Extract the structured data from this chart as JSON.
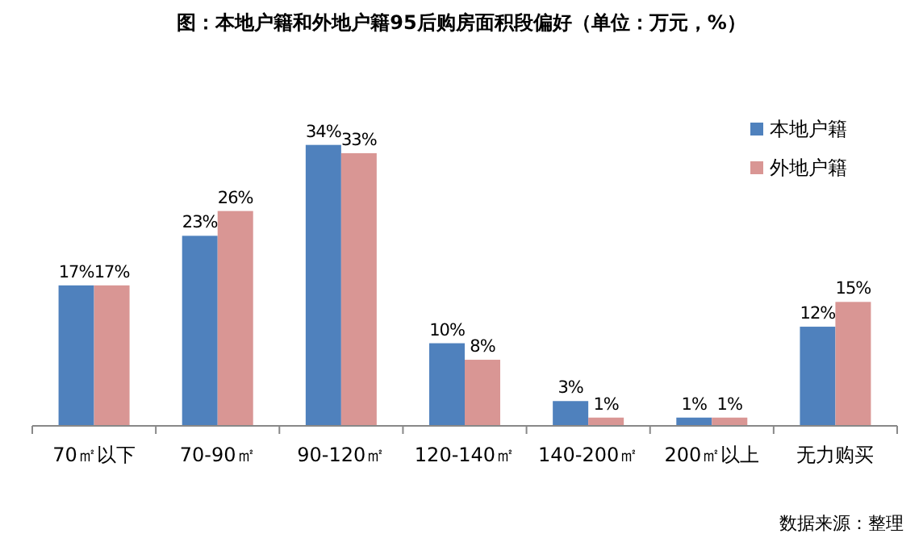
{
  "chart_data": {
    "type": "bar",
    "title": "图：本地户籍和外地户籍95后购房面积段偏好（单位：万元，%）",
    "categories": [
      "70㎡以下",
      "70-90㎡",
      "90-120㎡",
      "120-140㎡",
      "140-200㎡",
      "200㎡以上",
      "无力购买"
    ],
    "series": [
      {
        "name": "本地户籍",
        "color": "#4f81bd",
        "values": [
          17,
          23,
          34,
          10,
          3,
          1,
          12
        ],
        "value_labels": [
          "17%",
          "23%",
          "34%",
          "10%",
          "3%",
          "1%",
          "12%"
        ]
      },
      {
        "name": "外地户籍",
        "color": "#d99694",
        "values": [
          17,
          26,
          33,
          8,
          1,
          1,
          15
        ],
        "value_labels": [
          "17%",
          "26%",
          "33%",
          "8%",
          "1%",
          "1%",
          "15%"
        ]
      }
    ],
    "legend": "top right",
    "annotations": [
      "数据来源：整理"
    ]
  }
}
